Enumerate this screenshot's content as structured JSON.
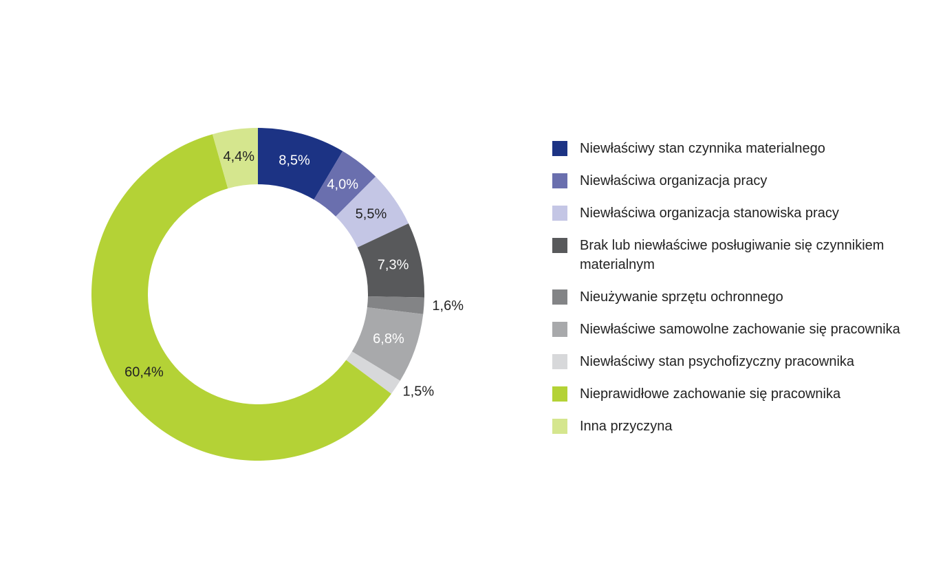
{
  "chart_data": {
    "type": "donut",
    "categories": [
      "Niewłaściwy stan czynnika materialnego",
      "Niewłaściwa organizacja pracy",
      "Niewłaściwa organizacja stanowiska pracy",
      "Brak lub niewłaściwe posługiwanie się czynnikiem materialnym",
      "Nieużywanie sprzętu ochronnego",
      "Niewłaściwe samowolne zachowanie się pracownika",
      "Niewłaściwy stan psychofizyczny pracownika",
      "Nieprawidłowe zachowanie się pracownika",
      "Inna przyczyna"
    ],
    "values": [
      8.5,
      4.0,
      5.5,
      7.3,
      1.6,
      6.8,
      1.5,
      60.4,
      4.4
    ],
    "value_labels": [
      "8,5%",
      "4,0%",
      "5,5%",
      "7,3%",
      "1,6%",
      "6,8%",
      "1,5%",
      "60,4%",
      "4,4%"
    ],
    "colors": [
      "#1c3384",
      "#6a6fae",
      "#c4c6e5",
      "#58595b",
      "#838486",
      "#a8a9ab",
      "#d7d8da",
      "#b4d236",
      "#d5e68e"
    ],
    "legend": "right"
  }
}
